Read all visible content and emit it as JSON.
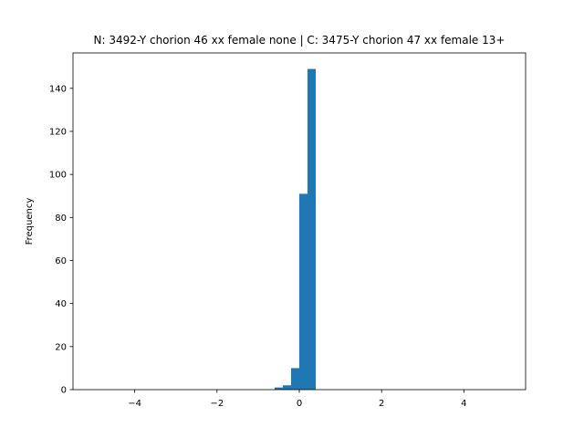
{
  "chart_data": {
    "type": "histogram",
    "title": "N: 3492-Y chorion 46 xx female none | C: 3475-Y chorion 47 xx female 13+",
    "ylabel": "Frequency",
    "bins": [
      -0.6,
      -0.4,
      -0.2,
      0,
      0.2,
      0.4
    ],
    "values": [
      1,
      2,
      10,
      91,
      149
    ],
    "color": "#1f77b4",
    "xlim": [
      -5.5,
      5.5
    ],
    "ylim": [
      0,
      156.45
    ],
    "xticks": [
      {
        "value": -4,
        "label": "−4"
      },
      {
        "value": -2,
        "label": "−2"
      },
      0,
      2,
      4
    ],
    "yticks": [
      0,
      20,
      40,
      60,
      80,
      100,
      120,
      140
    ]
  }
}
